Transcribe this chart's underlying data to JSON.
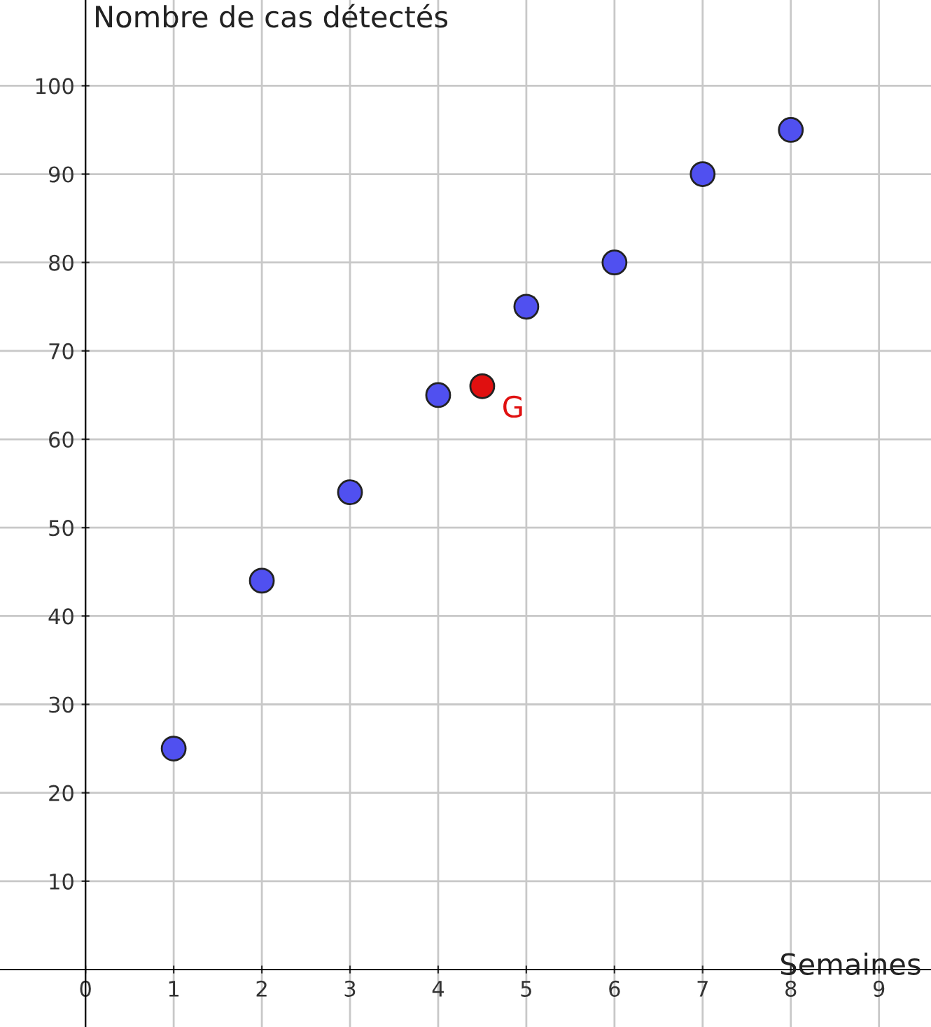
{
  "chart_data": {
    "type": "scatter",
    "xlabel": "Semaines",
    "ylabel": "Nombre de cas détectés",
    "xlim": [
      -0.97,
      9.59
    ],
    "ylim": [
      -6.5,
      109.7
    ],
    "xticks": [
      0,
      1,
      2,
      3,
      4,
      5,
      6,
      7,
      8,
      9
    ],
    "yticks": [
      10,
      20,
      30,
      40,
      50,
      60,
      70,
      80,
      90,
      100
    ],
    "grid": true,
    "legend": false,
    "marker": "circle",
    "series": [
      {
        "color": "#5050f0",
        "x": [
          1,
          2,
          3,
          4,
          5,
          6,
          7,
          8
        ],
        "values": [
          25,
          44,
          54,
          65,
          75,
          80,
          90,
          95
        ]
      },
      {
        "name": "G",
        "color": "#e01010",
        "x": [
          4.5
        ],
        "values": [
          66
        ]
      }
    ]
  }
}
